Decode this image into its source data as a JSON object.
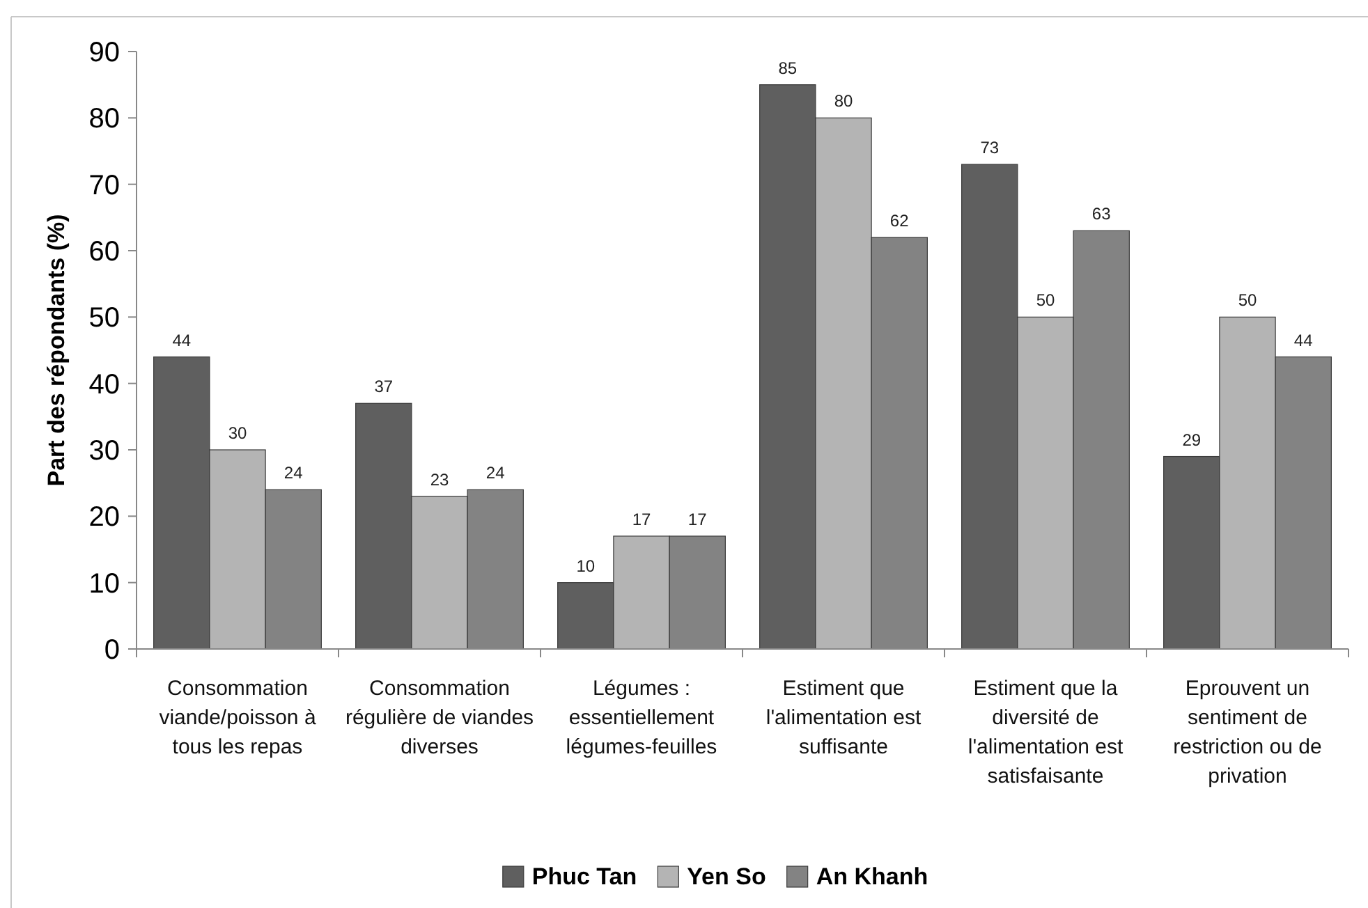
{
  "chart_data": {
    "type": "bar",
    "ylabel": "Part des répondants (%)",
    "categories": [
      "Consommation viande/poisson à tous les repas",
      "Consommation régulière de viandes diverses",
      "Légumes : essentiellement légumes-feuilles",
      "Estiment que l'alimentation est suffisante",
      "Estiment que la diversité de l'alimentation est satisfaisante",
      "Eprouvent un sentiment de restriction ou de privation"
    ],
    "series": [
      {
        "name": "Phuc Tan",
        "color": "#5f5f5f",
        "values": [
          44,
          37,
          10,
          85,
          73,
          29
        ]
      },
      {
        "name": "Yen So",
        "color": "#b4b4b4",
        "values": [
          30,
          23,
          17,
          80,
          50,
          50
        ]
      },
      {
        "name": "An Khanh",
        "color": "#838383",
        "values": [
          24,
          24,
          17,
          62,
          63,
          44
        ]
      }
    ],
    "ylim": [
      0,
      90
    ],
    "yticks": [
      0,
      10,
      20,
      30,
      40,
      50,
      60,
      70,
      80,
      90
    ],
    "data_labels": true,
    "legend": "bottom",
    "grid": false
  }
}
